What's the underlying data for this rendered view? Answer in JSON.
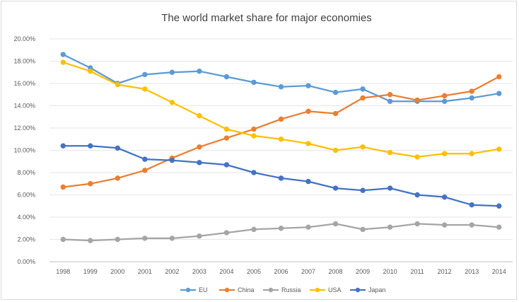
{
  "chart_data": {
    "type": "line",
    "title": "The world market share for major economies",
    "xlabel": "",
    "ylabel": "",
    "ylim": [
      0,
      20
    ],
    "y_tick_step": 2,
    "y_tick_labels": [
      "0.00%",
      "2.00%",
      "4.00%",
      "6.00%",
      "8.00%",
      "10.00%",
      "12.00%",
      "14.00%",
      "16.00%",
      "18.00%",
      "20.00%"
    ],
    "grid": "horizontal",
    "legend_position": "bottom",
    "x": [
      "1998",
      "1999",
      "2000",
      "2001",
      "2002",
      "2003",
      "2004",
      "2005",
      "2006",
      "2007",
      "2008",
      "2009",
      "2010",
      "2011",
      "2012",
      "2013",
      "2014"
    ],
    "series": [
      {
        "name": "EU",
        "color": "#5b9bd5",
        "values": [
          18.6,
          17.4,
          16.0,
          16.8,
          17.0,
          17.1,
          16.6,
          16.1,
          15.7,
          15.8,
          15.2,
          15.5,
          14.4,
          14.4,
          14.4,
          14.7,
          15.1
        ]
      },
      {
        "name": "China",
        "color": "#ed7d31",
        "values": [
          6.7,
          7.0,
          7.5,
          8.2,
          9.3,
          10.3,
          11.1,
          11.9,
          12.8,
          13.5,
          13.3,
          14.7,
          15.0,
          14.5,
          14.9,
          15.3,
          16.6
        ]
      },
      {
        "name": "Russia",
        "color": "#a5a5a5",
        "values": [
          2.0,
          1.9,
          2.0,
          2.1,
          2.1,
          2.3,
          2.6,
          2.9,
          3.0,
          3.1,
          3.4,
          2.9,
          3.1,
          3.4,
          3.3,
          3.3,
          3.1
        ]
      },
      {
        "name": "USA",
        "color": "#ffc000",
        "values": [
          17.9,
          17.1,
          15.9,
          15.5,
          14.3,
          13.1,
          11.9,
          11.3,
          11.0,
          10.6,
          10.0,
          10.3,
          9.8,
          9.4,
          9.7,
          9.7,
          10.1
        ]
      },
      {
        "name": "Japan",
        "color": "#4472c4",
        "values": [
          10.4,
          10.4,
          10.2,
          9.2,
          9.1,
          8.9,
          8.7,
          8.0,
          7.5,
          7.2,
          6.6,
          6.4,
          6.6,
          6.0,
          5.8,
          5.1,
          5.0
        ]
      }
    ]
  }
}
